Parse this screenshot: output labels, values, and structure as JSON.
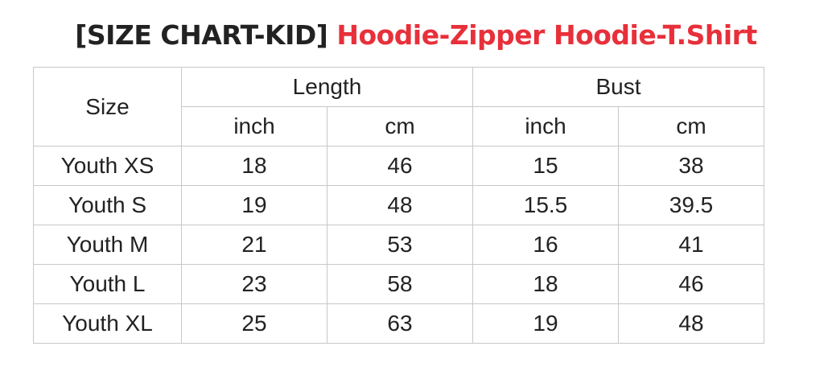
{
  "title": {
    "prefix": "[SIZE CHART-KID]",
    "products": "Hoodie-Zipper Hoodie-T.Shirt",
    "prefix_color": "#222222",
    "products_color": "#e8303a"
  },
  "table": {
    "size_header": "Size",
    "groups": [
      "Length",
      "Bust"
    ],
    "units": [
      "inch",
      "cm",
      "inch",
      "cm"
    ],
    "rows": [
      {
        "size": "Youth XS",
        "values": [
          "18",
          "46",
          "15",
          "38"
        ]
      },
      {
        "size": "Youth S",
        "values": [
          "19",
          "48",
          "15.5",
          "39.5"
        ]
      },
      {
        "size": "Youth M",
        "values": [
          "21",
          "53",
          "16",
          "41"
        ]
      },
      {
        "size": "Youth L",
        "values": [
          "23",
          "58",
          "18",
          "46"
        ]
      },
      {
        "size": "Youth XL",
        "values": [
          "25",
          "63",
          "19",
          "48"
        ]
      }
    ]
  }
}
